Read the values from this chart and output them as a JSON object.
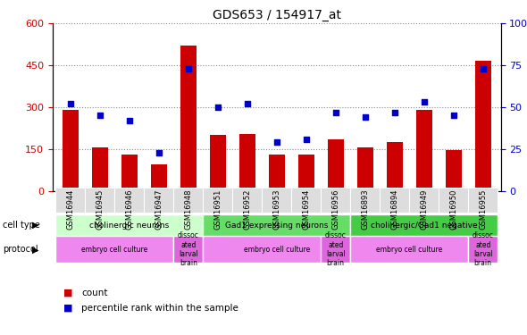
{
  "title": "GDS653 / 154917_at",
  "samples": [
    "GSM16944",
    "GSM16945",
    "GSM16946",
    "GSM16947",
    "GSM16948",
    "GSM16951",
    "GSM16952",
    "GSM16953",
    "GSM16954",
    "GSM16956",
    "GSM16893",
    "GSM16894",
    "GSM16949",
    "GSM16950",
    "GSM16955"
  ],
  "counts": [
    290,
    155,
    130,
    95,
    520,
    200,
    205,
    130,
    130,
    185,
    155,
    175,
    290,
    145,
    465
  ],
  "percentile_ranks": [
    52,
    45,
    42,
    23,
    73,
    50,
    52,
    29,
    31,
    47,
    44,
    47,
    53,
    45,
    73
  ],
  "bar_color": "#cc0000",
  "dot_color": "#0000cc",
  "ylim_left": [
    0,
    600
  ],
  "ylim_right": [
    0,
    100
  ],
  "yticks_left": [
    0,
    150,
    300,
    450,
    600
  ],
  "ytick_labels_left": [
    "0",
    "150",
    "300",
    "450",
    "600"
  ],
  "yticks_right": [
    0,
    25,
    50,
    75,
    100
  ],
  "ytick_labels_right": [
    "0",
    "25",
    "50",
    "75",
    "100%"
  ],
  "cell_type_groups": [
    {
      "label": "cholinergic neurons",
      "start": 0,
      "end": 4,
      "color": "#ccffcc"
    },
    {
      "label": "Gad1 expressing neurons",
      "start": 5,
      "end": 9,
      "color": "#66dd66"
    },
    {
      "label": "cholinergic/Gad1 negative",
      "start": 10,
      "end": 14,
      "color": "#44cc44"
    }
  ],
  "protocol_groups": [
    {
      "label": "embryo cell culture",
      "start": 0,
      "end": 3,
      "color": "#ee88ee"
    },
    {
      "label": "dissoc\nated\nlarval\nbrain",
      "start": 4,
      "end": 4,
      "color": "#dd66dd"
    },
    {
      "label": "embryo cell culture",
      "start": 5,
      "end": 9,
      "color": "#ee88ee"
    },
    {
      "label": "dissoc\nated\nlarval\nbrain",
      "start": 9,
      "end": 9,
      "color": "#dd66dd"
    },
    {
      "label": "embryo cell culture",
      "start": 10,
      "end": 13,
      "color": "#ee88ee"
    },
    {
      "label": "dissoc\nated\nlarval\nbrain",
      "start": 14,
      "end": 14,
      "color": "#dd66dd"
    }
  ],
  "legend_count_color": "#cc0000",
  "legend_dot_color": "#0000cc",
  "bg_color": "#ffffff",
  "grid_color": "#888888",
  "tick_label_color_left": "#cc0000",
  "tick_label_color_right": "#0000cc"
}
